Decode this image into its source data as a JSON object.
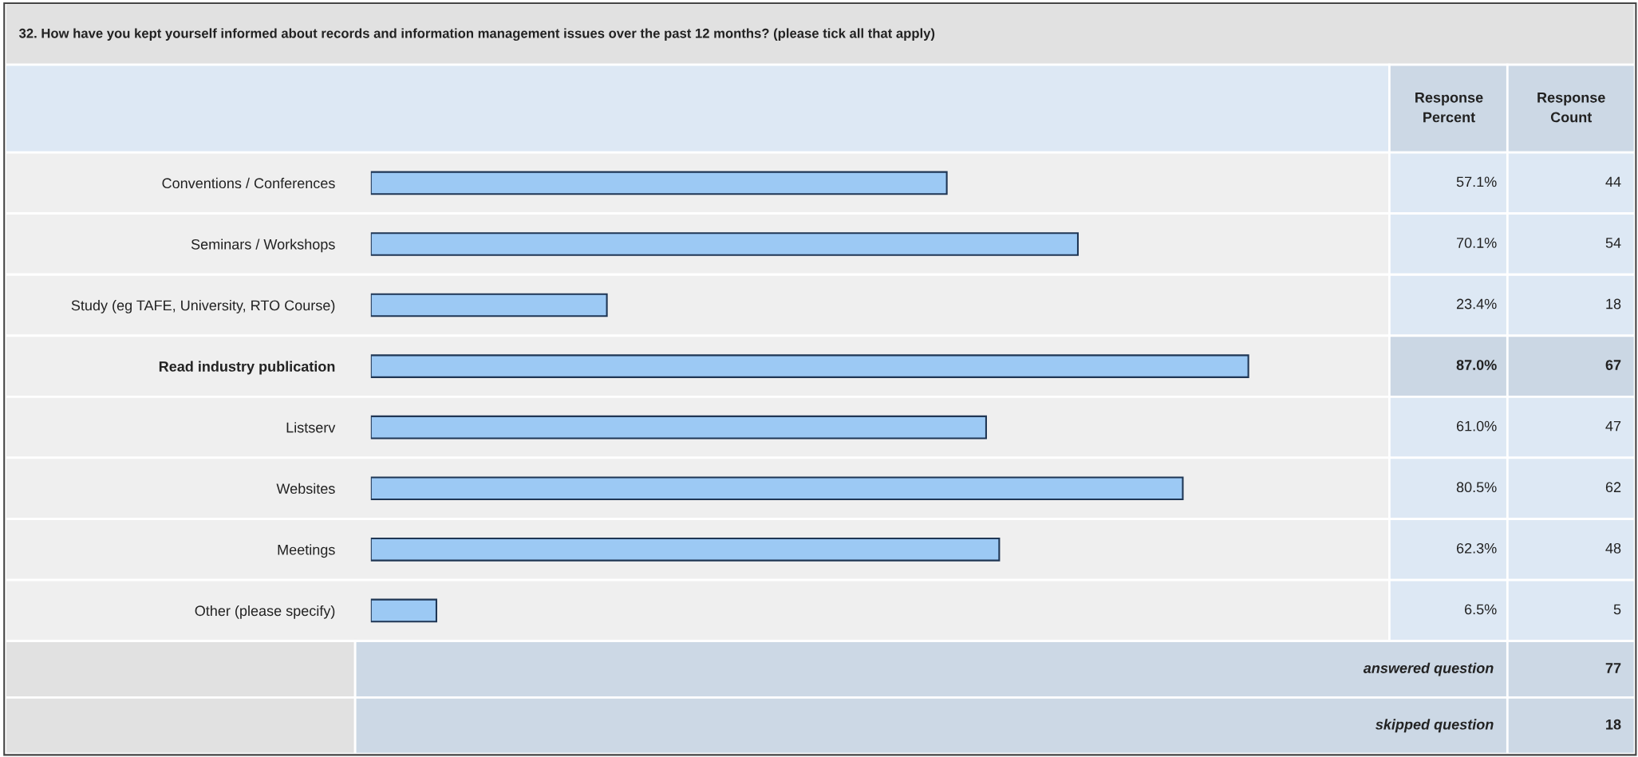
{
  "chart_data": {
    "type": "bar",
    "orientation": "horizontal",
    "title": "32. How have you kept yourself informed about records and information management issues over the past 12 months? (please tick all that apply)",
    "categories": [
      "Conventions / Conferences",
      "Seminars / Workshops",
      "Study (eg TAFE, University, RTO Course)",
      "Read industry publication",
      "Listserv",
      "Websites",
      "Meetings",
      "Other (please specify)"
    ],
    "values": [
      57.1,
      70.1,
      23.4,
      87.0,
      61.0,
      80.5,
      62.3,
      6.5
    ],
    "value_labels": [
      "57.1%",
      "70.1%",
      "23.4%",
      "87.0%",
      "61.0%",
      "80.5%",
      "62.3%",
      "6.5%"
    ],
    "color": "#9cc9f4",
    "tick_labels": "y",
    "annotations": [
      "Response Percent",
      "Response Count",
      "44",
      "54",
      "18",
      "67",
      "47",
      "62",
      "48",
      "5",
      "answered question",
      "77",
      "skipped question",
      "18"
    ]
  }
}
